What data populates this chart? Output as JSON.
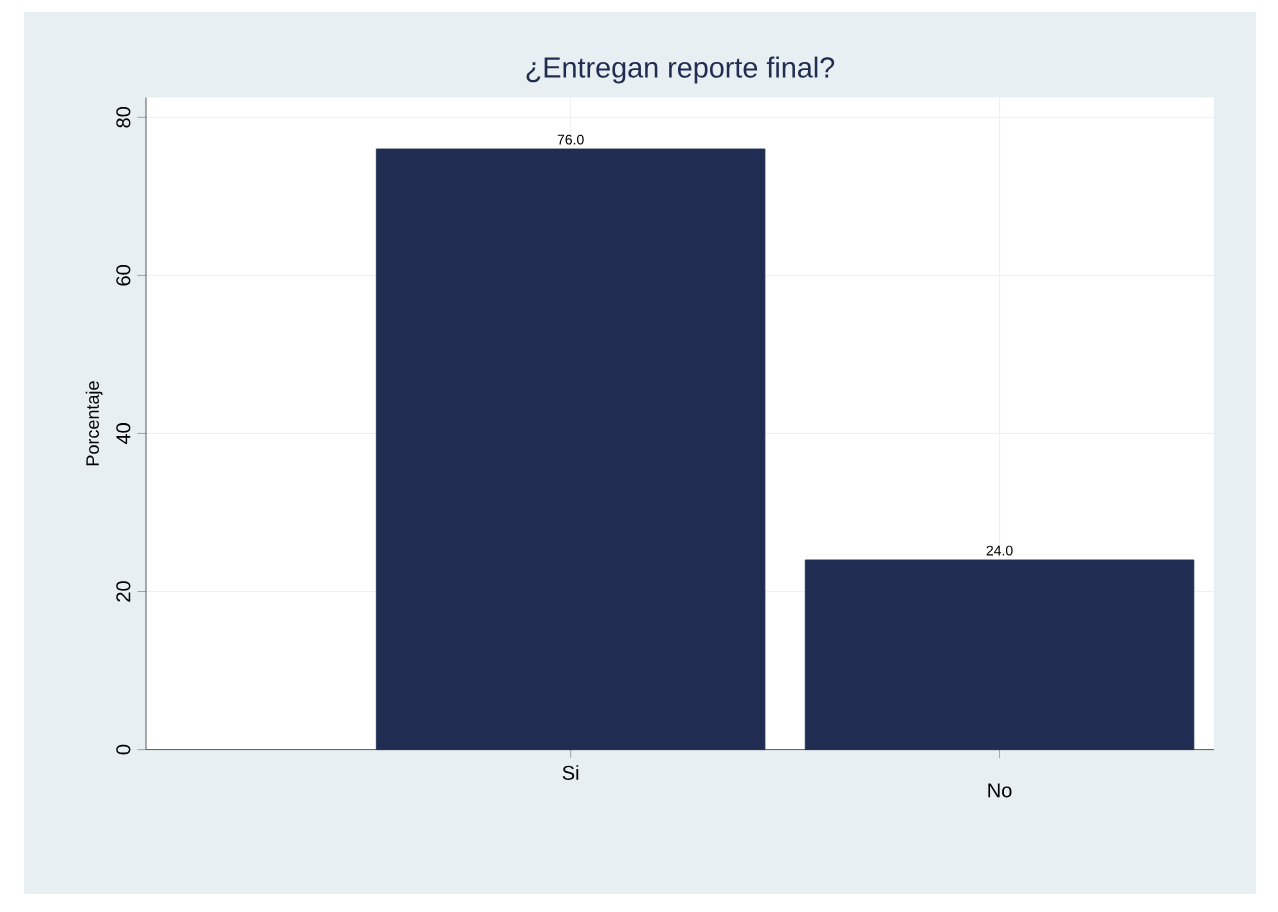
{
  "chart_data": {
    "type": "bar",
    "title": "¿Entregan reporte final?",
    "ylabel": "Porcentaje",
    "categories": [
      "Si",
      "No"
    ],
    "values": [
      76.0,
      24.0
    ],
    "color": "#202c52",
    "value_labels": [
      "76.0",
      "24.0"
    ],
    "ylim": [
      0,
      82.5
    ],
    "yticks": [
      0,
      20,
      40,
      60,
      80
    ],
    "grid": true
  }
}
